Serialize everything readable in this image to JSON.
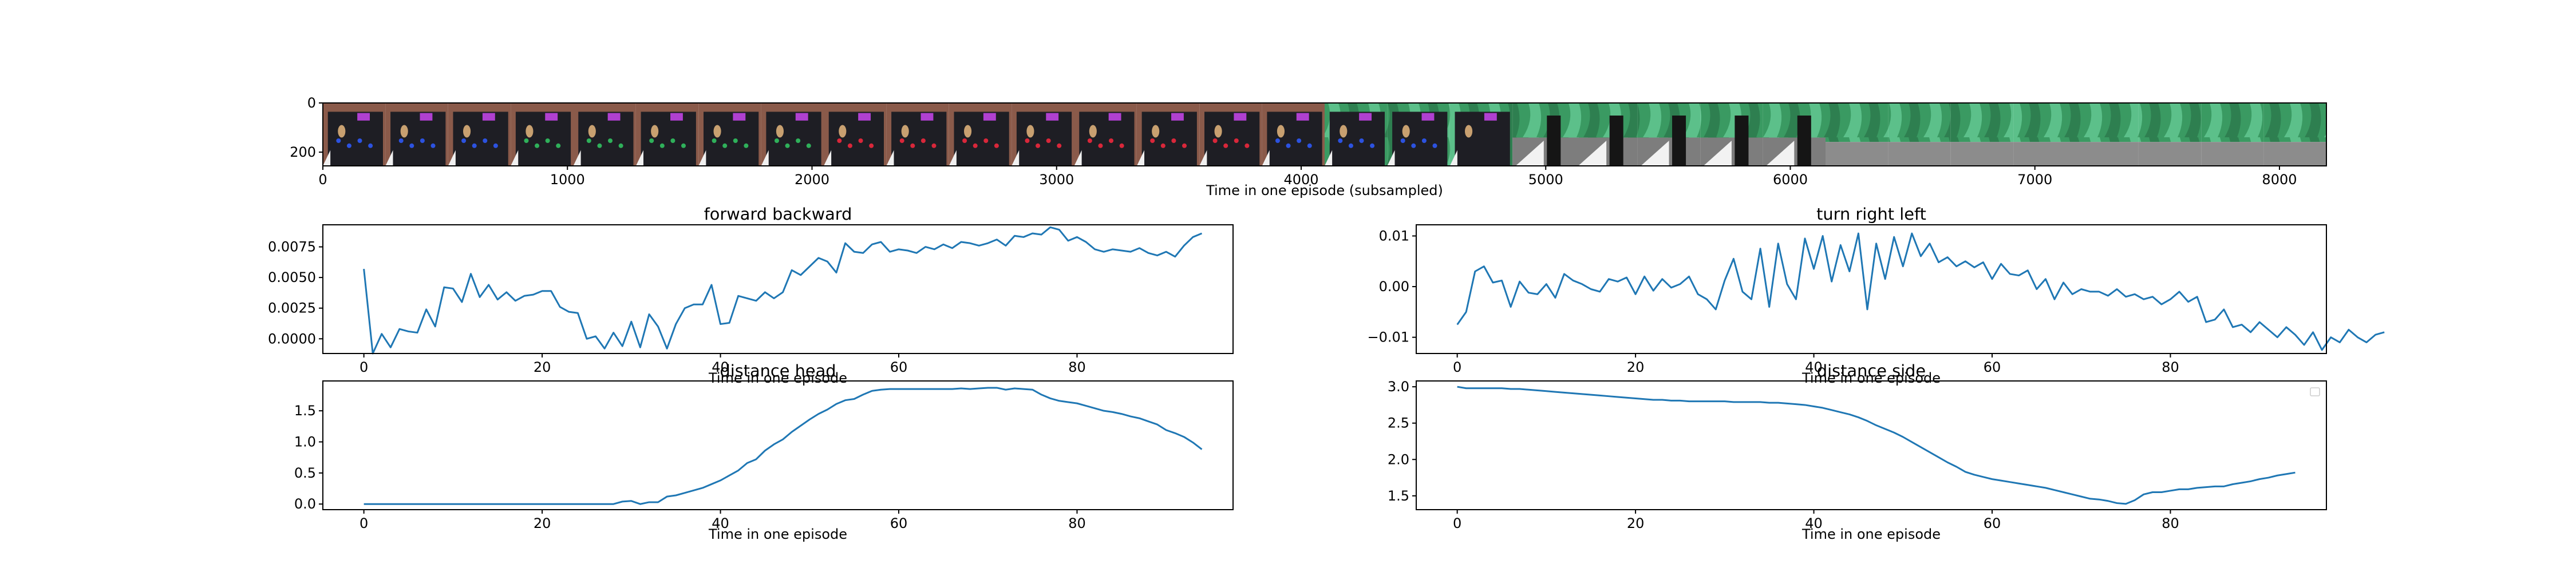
{
  "style": {
    "line_color": "#1f77b4"
  },
  "chart_data": [
    {
      "id": "frames",
      "type": "image-strip",
      "title": "",
      "xlabel": "Time in one episode (subsampled)",
      "ylabel": "",
      "xlim": [
        0,
        8192
      ],
      "ylim": [
        256,
        0
      ],
      "xticks": [
        0,
        1000,
        2000,
        3000,
        4000,
        5000,
        6000,
        7000,
        8000
      ],
      "yticks": [
        0,
        200
      ],
      "frames": [
        {
          "x0": 0,
          "x1": 256,
          "scene": "dark-box",
          "dots": "blue"
        },
        {
          "x0": 256,
          "x1": 512,
          "scene": "dark-box",
          "dots": "blue"
        },
        {
          "x0": 512,
          "x1": 768,
          "scene": "dark-box",
          "dots": "blue"
        },
        {
          "x0": 768,
          "x1": 1024,
          "scene": "dark-box",
          "dots": "green"
        },
        {
          "x0": 1024,
          "x1": 1280,
          "scene": "dark-box",
          "dots": "green"
        },
        {
          "x0": 1280,
          "x1": 1536,
          "scene": "dark-box",
          "dots": "green"
        },
        {
          "x0": 1536,
          "x1": 1792,
          "scene": "dark-box",
          "dots": "green"
        },
        {
          "x0": 1792,
          "x1": 2048,
          "scene": "dark-box",
          "dots": "green"
        },
        {
          "x0": 2048,
          "x1": 2304,
          "scene": "dark-box",
          "dots": "red"
        },
        {
          "x0": 2304,
          "x1": 2560,
          "scene": "dark-box",
          "dots": "red"
        },
        {
          "x0": 2560,
          "x1": 2816,
          "scene": "dark-box",
          "dots": "red"
        },
        {
          "x0": 2816,
          "x1": 3072,
          "scene": "dark-box",
          "dots": "red"
        },
        {
          "x0": 3072,
          "x1": 3328,
          "scene": "dark-box",
          "dots": "red"
        },
        {
          "x0": 3328,
          "x1": 3584,
          "scene": "dark-box",
          "dots": "red"
        },
        {
          "x0": 3584,
          "x1": 3840,
          "scene": "dark-box",
          "dots": "red"
        },
        {
          "x0": 3840,
          "x1": 4096,
          "scene": "dark-box",
          "dots": "blue"
        },
        {
          "x0": 4096,
          "x1": 4352,
          "scene": "curtain-box",
          "dots": "blue"
        },
        {
          "x0": 4352,
          "x1": 4608,
          "scene": "curtain-box",
          "dots": "blue"
        },
        {
          "x0": 4608,
          "x1": 4864,
          "scene": "curtain-box",
          "dots": "none"
        },
        {
          "x0": 4864,
          "x1": 5120,
          "scene": "curtain-edge",
          "dots": "none"
        },
        {
          "x0": 5120,
          "x1": 5376,
          "scene": "curtain-edge",
          "dots": "none"
        },
        {
          "x0": 5376,
          "x1": 5632,
          "scene": "curtain-edge",
          "dots": "none"
        },
        {
          "x0": 5632,
          "x1": 5888,
          "scene": "curtain-edge",
          "dots": "none"
        },
        {
          "x0": 5888,
          "x1": 6144,
          "scene": "curtain-edge",
          "dots": "none"
        },
        {
          "x0": 6144,
          "x1": 6400,
          "scene": "curtain",
          "dots": "none"
        },
        {
          "x0": 6400,
          "x1": 6656,
          "scene": "curtain",
          "dots": "none"
        },
        {
          "x0": 6656,
          "x1": 6912,
          "scene": "curtain",
          "dots": "none"
        },
        {
          "x0": 6912,
          "x1": 7168,
          "scene": "curtain",
          "dots": "none"
        },
        {
          "x0": 7168,
          "x1": 7424,
          "scene": "curtain",
          "dots": "none"
        },
        {
          "x0": 7424,
          "x1": 7680,
          "scene": "curtain",
          "dots": "none"
        },
        {
          "x0": 7680,
          "x1": 7936,
          "scene": "curtain",
          "dots": "none"
        },
        {
          "x0": 7936,
          "x1": 8192,
          "scene": "curtain",
          "dots": "none"
        }
      ]
    },
    {
      "id": "forward-backward",
      "type": "line",
      "title": "forward backward",
      "xlabel": "Time in one episode",
      "ylabel": "",
      "xlim": [
        -4.6,
        97.5
      ],
      "ylim": [
        -0.0012,
        0.0093
      ],
      "xticks": [
        0,
        20,
        40,
        60,
        80
      ],
      "yticks": [
        0.0,
        0.0025,
        0.005,
        0.0075
      ],
      "ytick_labels": [
        "0.0000",
        "0.0025",
        "0.0050",
        "0.0075"
      ],
      "series": [
        {
          "values": [
            0.0057,
            -0.0012,
            0.0004,
            -0.0007,
            0.0008,
            0.0006,
            0.0005,
            0.0024,
            0.001,
            0.0042,
            0.0041,
            0.003,
            0.0053,
            0.0034,
            0.0044,
            0.0032,
            0.0038,
            0.0031,
            0.0035,
            0.0036,
            0.0039,
            0.0039,
            0.0026,
            0.0022,
            0.0021,
            0.0,
            0.0002,
            -0.0008,
            0.0005,
            -0.0006,
            0.0014,
            -0.0007,
            0.002,
            0.001,
            -0.0008,
            0.0012,
            0.0025,
            0.0028,
            0.0028,
            0.0044,
            0.0012,
            0.0013,
            0.0035,
            0.0033,
            0.0031,
            0.0038,
            0.0033,
            0.0038,
            0.0056,
            0.0052,
            0.0059,
            0.0066,
            0.0063,
            0.0054,
            0.0078,
            0.0071,
            0.007,
            0.0077,
            0.0079,
            0.0071,
            0.0073,
            0.0072,
            0.007,
            0.0075,
            0.0073,
            0.0077,
            0.0074,
            0.0079,
            0.0078,
            0.0076,
            0.0078,
            0.0081,
            0.0076,
            0.0084,
            0.0083,
            0.0086,
            0.0085,
            0.0091,
            0.0089,
            0.008,
            0.0083,
            0.0079,
            0.0073,
            0.0071,
            0.0073,
            0.0072,
            0.0071,
            0.0074,
            0.007,
            0.0068,
            0.0071,
            0.0067,
            0.0076,
            0.0083,
            0.0086
          ]
        }
      ]
    },
    {
      "id": "turn-right-left",
      "type": "line",
      "title": "turn right left",
      "xlabel": "Time in one episode",
      "ylabel": "",
      "xlim": [
        -4.6,
        97.5
      ],
      "ylim": [
        -0.0132,
        0.0122
      ],
      "xticks": [
        0,
        20,
        40,
        60,
        80
      ],
      "yticks": [
        -0.01,
        0.0,
        0.01
      ],
      "ytick_labels": [
        "−0.01",
        "0.00",
        "0.01"
      ],
      "series": [
        {
          "values": [
            -0.0075,
            -0.005,
            0.003,
            0.004,
            0.0008,
            0.0012,
            -0.004,
            0.001,
            -0.0012,
            -0.0015,
            0.0005,
            -0.0022,
            0.0025,
            0.0012,
            0.0005,
            -0.0005,
            -0.001,
            0.0015,
            0.001,
            0.0018,
            -0.0015,
            0.002,
            -0.0008,
            0.0015,
            -0.0002,
            0.0005,
            0.002,
            -0.0015,
            -0.0025,
            -0.0045,
            0.0012,
            0.0055,
            -0.001,
            -0.0025,
            0.0075,
            -0.004,
            0.0085,
            0.0005,
            -0.0025,
            0.0095,
            0.0035,
            0.01,
            0.001,
            0.0082,
            0.003,
            0.0105,
            -0.0045,
            0.0085,
            0.0015,
            0.0098,
            0.004,
            0.0105,
            0.006,
            0.0085,
            0.0048,
            0.0058,
            0.004,
            0.005,
            0.0038,
            0.0048,
            0.0015,
            0.0045,
            0.0025,
            0.0022,
            0.0032,
            -0.0005,
            0.0015,
            -0.0025,
            0.0008,
            -0.0015,
            -0.0005,
            -0.001,
            -0.001,
            -0.0018,
            -0.0005,
            -0.002,
            -0.0015,
            -0.0025,
            -0.002,
            -0.0035,
            -0.0025,
            -0.001,
            -0.003,
            -0.002,
            -0.007,
            -0.0065,
            -0.0045,
            -0.008,
            -0.0075,
            -0.009,
            -0.007,
            -0.0085,
            -0.01,
            -0.008,
            -0.0095,
            -0.0115,
            -0.009,
            -0.0125,
            -0.01,
            -0.011,
            -0.0085,
            -0.01,
            -0.011,
            -0.0095,
            -0.009
          ]
        }
      ]
    },
    {
      "id": "distance-head",
      "type": "line",
      "title": "distance head",
      "xlabel": "Time in one episode",
      "ylabel": "",
      "xlim": [
        -4.6,
        97.5
      ],
      "ylim": [
        -0.09,
        1.98
      ],
      "xticks": [
        0,
        20,
        40,
        60,
        80
      ],
      "yticks": [
        0.0,
        0.5,
        1.0,
        1.5
      ],
      "ytick_labels": [
        "0.0",
        "0.5",
        "1.0",
        "1.5"
      ],
      "series": [
        {
          "values": [
            0.0,
            0.0,
            0.0,
            0.0,
            0.0,
            0.0,
            0.0,
            0.0,
            0.0,
            0.0,
            0.0,
            0.0,
            0.0,
            0.0,
            0.0,
            0.0,
            0.0,
            0.0,
            0.0,
            0.0,
            0.0,
            0.0,
            0.0,
            0.0,
            0.0,
            0.0,
            0.0,
            0.0,
            0.0,
            0.04,
            0.05,
            0.0,
            0.03,
            0.03,
            0.12,
            0.14,
            0.18,
            0.22,
            0.26,
            0.32,
            0.38,
            0.46,
            0.54,
            0.66,
            0.72,
            0.86,
            0.96,
            1.04,
            1.16,
            1.26,
            1.36,
            1.45,
            1.52,
            1.61,
            1.67,
            1.69,
            1.76,
            1.82,
            1.84,
            1.85,
            1.85,
            1.85,
            1.85,
            1.85,
            1.85,
            1.85,
            1.85,
            1.86,
            1.85,
            1.86,
            1.87,
            1.87,
            1.84,
            1.86,
            1.85,
            1.84,
            1.76,
            1.7,
            1.66,
            1.64,
            1.62,
            1.58,
            1.54,
            1.5,
            1.48,
            1.45,
            1.41,
            1.38,
            1.33,
            1.28,
            1.19,
            1.14,
            1.08,
            0.99,
            0.88
          ]
        }
      ]
    },
    {
      "id": "distance-side",
      "type": "line",
      "title": "distance side",
      "xlabel": "Time in one episode",
      "ylabel": "",
      "xlim": [
        -4.6,
        97.5
      ],
      "ylim": [
        1.31,
        3.08
      ],
      "xticks": [
        0,
        20,
        40,
        60,
        80
      ],
      "yticks": [
        1.5,
        2.0,
        2.5,
        3.0
      ],
      "ytick_labels": [
        "1.5",
        "2.0",
        "2.5",
        "3.0"
      ],
      "series": [
        {
          "values": [
            3.0,
            2.98,
            2.98,
            2.98,
            2.98,
            2.98,
            2.97,
            2.97,
            2.96,
            2.95,
            2.94,
            2.93,
            2.92,
            2.91,
            2.9,
            2.89,
            2.88,
            2.87,
            2.86,
            2.85,
            2.84,
            2.83,
            2.82,
            2.82,
            2.81,
            2.81,
            2.8,
            2.8,
            2.8,
            2.8,
            2.8,
            2.79,
            2.79,
            2.79,
            2.79,
            2.78,
            2.78,
            2.77,
            2.76,
            2.75,
            2.73,
            2.71,
            2.68,
            2.65,
            2.62,
            2.58,
            2.53,
            2.47,
            2.42,
            2.37,
            2.31,
            2.24,
            2.17,
            2.1,
            2.03,
            1.96,
            1.9,
            1.83,
            1.79,
            1.76,
            1.73,
            1.71,
            1.69,
            1.67,
            1.65,
            1.63,
            1.61,
            1.58,
            1.55,
            1.52,
            1.49,
            1.46,
            1.45,
            1.43,
            1.4,
            1.39,
            1.44,
            1.52,
            1.55,
            1.55,
            1.57,
            1.59,
            1.59,
            1.61,
            1.62,
            1.63,
            1.63,
            1.66,
            1.68,
            1.7,
            1.73,
            1.75,
            1.78,
            1.8,
            1.82
          ]
        }
      ]
    }
  ]
}
